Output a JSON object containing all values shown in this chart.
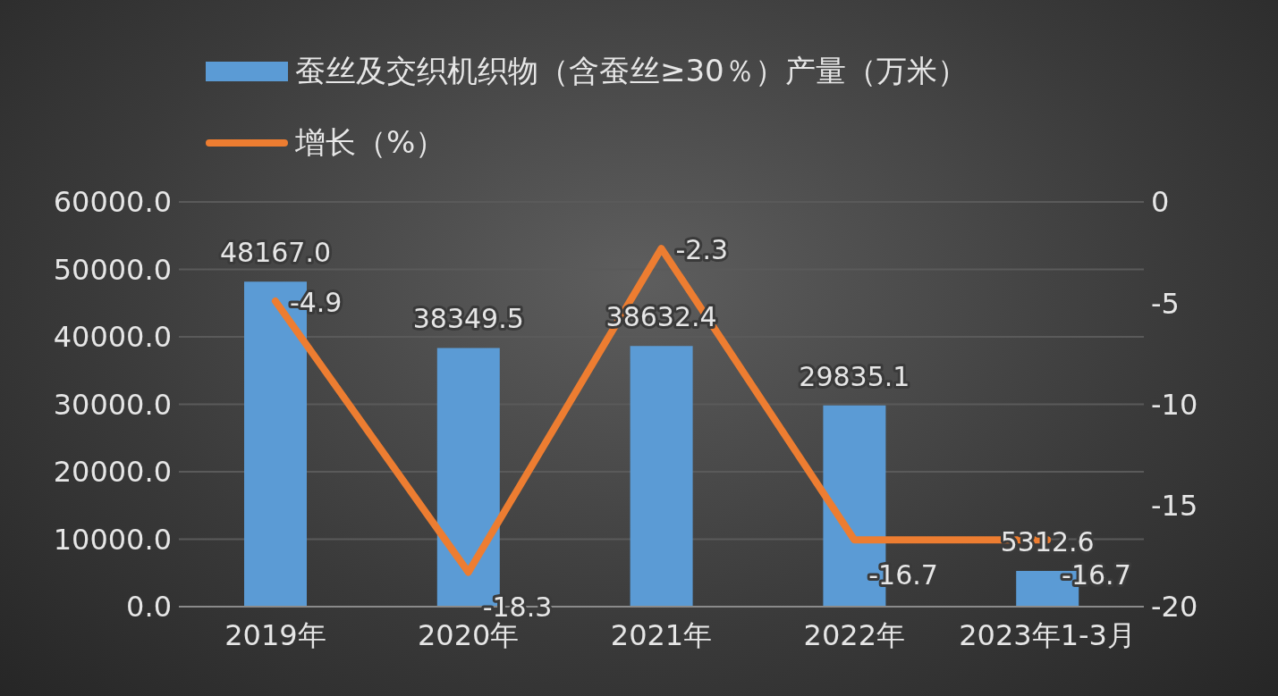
{
  "chart_data": {
    "type": "bar",
    "categories": [
      "2019年",
      "2020年",
      "2021年",
      "2022年",
      "2023年1-3月"
    ],
    "series": [
      {
        "name": "蚕丝及交织机织物（含蚕丝≥30％）产量（万米）",
        "color": "#5b9bd5",
        "values": [
          48167.0,
          38349.5,
          38632.4,
          29835.1,
          5312.6
        ],
        "value_labels": [
          "48167.0",
          "38349.5",
          "38632.4",
          "29835.1",
          "5312.6"
        ]
      },
      {
        "name": "增长（%）",
        "type": "line",
        "axis": "y2",
        "color": "#ed7d31",
        "values": [
          -4.9,
          -18.3,
          -2.3,
          -16.7,
          -16.7
        ],
        "value_labels": [
          "-4.9",
          "-18.3",
          "-2.3",
          "-16.7",
          "-16.7"
        ]
      }
    ],
    "ylim": [
      0,
      60000
    ],
    "yticks": [
      {
        "value": 0,
        "label": "0.0"
      },
      {
        "value": 10000,
        "label": "10000.0"
      },
      {
        "value": 20000,
        "label": "20000.0"
      },
      {
        "value": 30000,
        "label": "30000.0"
      },
      {
        "value": 40000,
        "label": "40000.0"
      },
      {
        "value": 50000,
        "label": "50000.0"
      },
      {
        "value": 60000,
        "label": "60000.0"
      }
    ],
    "y2lim": [
      -20,
      0
    ],
    "y2ticks": [
      -20,
      -15,
      -10,
      -5,
      0
    ],
    "grid": "y",
    "legend": "top",
    "marker": "none",
    "line_style": "solid"
  }
}
